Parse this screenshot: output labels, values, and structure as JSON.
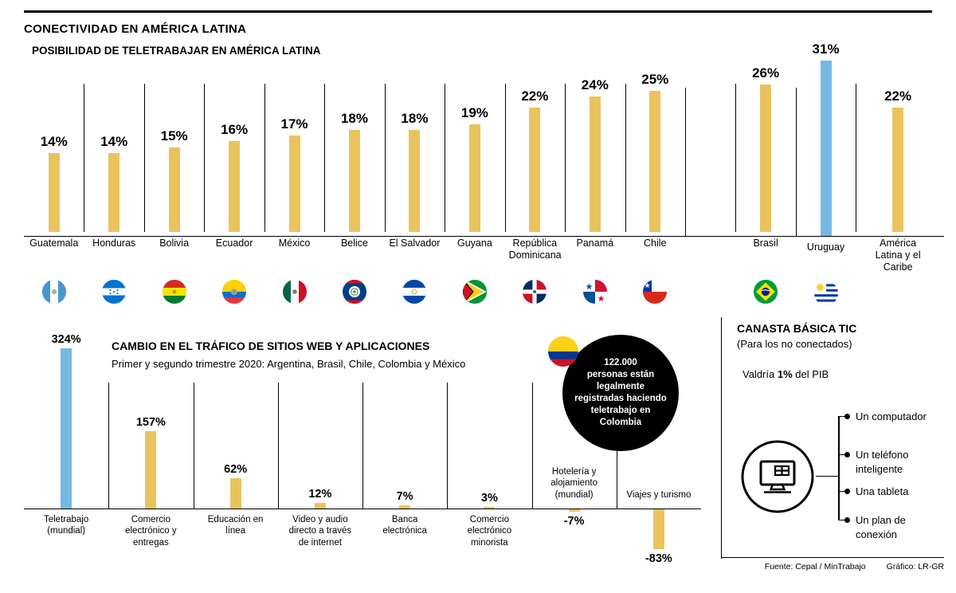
{
  "page": {
    "title": "CONECTIVIDAD EN AMÉRICA LATINA",
    "footer": {
      "source": "Fuente: Cepal / MinTrabajo",
      "credit": "Gráfico: LR-GR"
    }
  },
  "colors": {
    "bar": "#e9c45e",
    "bar_highlight": "#76b8e2",
    "ink": "#000000"
  },
  "chart_data": [
    {
      "id": "teletrabajo",
      "type": "bar",
      "title": "POSIBILIDAD DE TELETRABAJAR EN AMÉRICA LATINA",
      "unit": "%",
      "ylim": [
        0,
        31
      ],
      "grid": false,
      "gap_after": "Chile",
      "bars": [
        {
          "label": "Guatemala",
          "value": 14,
          "flag": "guatemala"
        },
        {
          "label": "Honduras",
          "value": 14,
          "flag": "honduras"
        },
        {
          "label": "Bolivia",
          "value": 15,
          "flag": "bolivia"
        },
        {
          "label": "Ecuador",
          "value": 16,
          "flag": "ecuador"
        },
        {
          "label": "México",
          "value": 17,
          "flag": "mexico"
        },
        {
          "label": "Belice",
          "value": 18,
          "flag": "belize"
        },
        {
          "label": "El Salvador",
          "value": 18,
          "flag": "el-salvador"
        },
        {
          "label": "Guyana",
          "value": 19,
          "flag": "guyana"
        },
        {
          "label": "República Dominicana",
          "value": 22,
          "flag": "dominican-republic"
        },
        {
          "label": "Panamá",
          "value": 24,
          "flag": "panama"
        },
        {
          "label": "Chile",
          "value": 25,
          "flag": "chile"
        },
        {
          "label": "Brasil",
          "value": 26,
          "flag": "brazil"
        },
        {
          "label": "Uruguay",
          "value": 31,
          "flag": "uruguay",
          "highlight": true
        },
        {
          "label": "América Latina y el Caribe",
          "value": 22,
          "flag": null,
          "wide": true
        }
      ]
    },
    {
      "id": "trafico",
      "type": "bar",
      "title": "CAMBIO EN EL TRÁFICO DE SITIOS WEB Y APLICACIONES",
      "subtitle": "Primer y segundo trimestre 2020: Argentina, Brasil, Chile, Colombia y México",
      "unit": "%",
      "ylim": [
        -83,
        324
      ],
      "grid": false,
      "bars": [
        {
          "label": "Teletrabajo (mundial)",
          "value": 324,
          "highlight": true
        },
        {
          "label": "Comercio electrónico y entregas",
          "value": 157
        },
        {
          "label": "Educación en línea",
          "value": 62
        },
        {
          "label": "Video y audio directo a través de internet",
          "value": 12
        },
        {
          "label": "Banca electrónica",
          "value": 7
        },
        {
          "label": "Comercio electrónico minorista",
          "value": 3
        },
        {
          "label": "Hotelería y alojamiento (mundial)",
          "value": -7
        },
        {
          "label": "Viajes y turismo",
          "value": -83
        }
      ]
    }
  ],
  "callout": {
    "flag": "colombia",
    "text": "122.000\npersonas están\nlegalmente\nregistradas haciendo\nteletrabajo en\nColombia"
  },
  "basket": {
    "title": "CANASTA BÁSICA TIC",
    "subtitle": "(Para los no conectados)",
    "value_prefix": "Valdría ",
    "value": "1%",
    "value_suffix": " del PIB",
    "items": [
      "Un computador",
      "Un teléfono inteligente",
      "Una tableta",
      "Un plan de conexión"
    ]
  }
}
